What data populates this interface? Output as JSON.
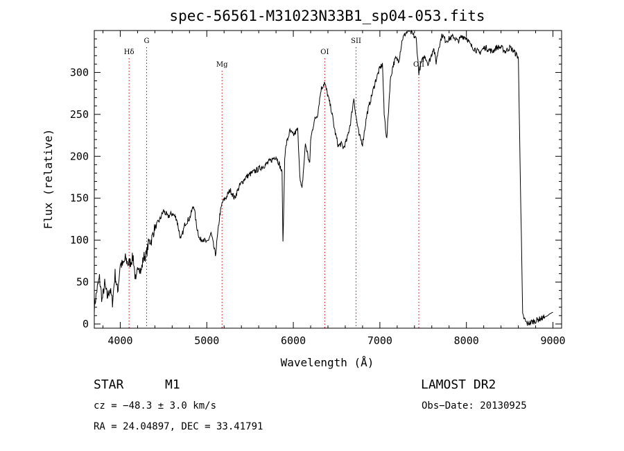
{
  "colors": {
    "spectrum": "#000000",
    "line_markers": "#cc0000",
    "axes": "#000000"
  },
  "chart_data": {
    "type": "line",
    "title": "spec-56561-M31023N33B1_sp04-053.fits",
    "xlabel": "Wavelength (Å)",
    "ylabel": "Flux (relative)",
    "xlim": [
      3700,
      9100
    ],
    "ylim": [
      -5,
      350
    ],
    "xticks": [
      4000,
      5000,
      6000,
      7000,
      8000,
      9000
    ],
    "yticks": [
      0,
      50,
      100,
      150,
      200,
      250,
      300
    ],
    "grid": false,
    "series": [
      {
        "x": [
          3700,
          3730,
          3760,
          3790,
          3820,
          3850,
          3880,
          3910,
          3940,
          3970,
          4000,
          4030,
          4060,
          4090,
          4120,
          4150,
          4180,
          4210,
          4240,
          4270,
          4300,
          4330,
          4360,
          4390,
          4420,
          4460,
          4500,
          4550,
          4600,
          4650,
          4700,
          4750,
          4800,
          4850,
          4880,
          4920,
          4960,
          5000,
          5050,
          5100,
          5150,
          5180,
          5200,
          5230,
          5270,
          5320,
          5380,
          5450,
          5520,
          5600,
          5680,
          5740,
          5800,
          5840,
          5870,
          5880,
          5890,
          5900,
          5920,
          5960,
          6000,
          6050,
          6080,
          6100,
          6140,
          6170,
          6190,
          6200,
          6240,
          6280,
          6320,
          6360,
          6400,
          6440,
          6480,
          6520,
          6550,
          6580,
          6620,
          6660,
          6700,
          6720,
          6760,
          6800,
          6850,
          6900,
          6950,
          7000,
          7030,
          7050,
          7080,
          7120,
          7150,
          7180,
          7220,
          7260,
          7300,
          7340,
          7380,
          7420,
          7450,
          7480,
          7520,
          7560,
          7600,
          7620,
          7650,
          7680,
          7720,
          7760,
          7800,
          7850,
          7900,
          7950,
          8000,
          8050,
          8100,
          8150,
          8180,
          8220,
          8260,
          8300,
          8350,
          8400,
          8450,
          8500,
          8550,
          8600,
          8650,
          8700,
          8750,
          8800,
          8850,
          8900,
          8920,
          8940,
          8950,
          8960,
          8980,
          9000
        ],
        "y": [
          20,
          40,
          55,
          28,
          48,
          32,
          42,
          26,
          60,
          38,
          72,
          70,
          78,
          72,
          74,
          80,
          48,
          72,
          62,
          80,
          82,
          98,
          100,
          112,
          118,
          125,
          135,
          128,
          132,
          126,
          100,
          120,
          126,
          142,
          118,
          100,
          102,
          96,
          108,
          82,
          130,
          145,
          148,
          152,
          160,
          150,
          165,
          175,
          180,
          185,
          190,
          195,
          200,
          190,
          180,
          95,
          140,
          200,
          215,
          230,
          225,
          232,
          170,
          160,
          215,
          200,
          190,
          220,
          242,
          250,
          280,
          288,
          272,
          255,
          230,
          212,
          215,
          210,
          220,
          240,
          270,
          250,
          225,
          215,
          250,
          270,
          290,
          305,
          310,
          250,
          220,
          290,
          308,
          316,
          315,
          340,
          347,
          350,
          345,
          340,
          300,
          312,
          320,
          310,
          322,
          330,
          312,
          330,
          345,
          338,
          340,
          343,
          337,
          343,
          342,
          332,
          328,
          323,
          327,
          330,
          327,
          325,
          330,
          330,
          325,
          330,
          325,
          318,
          10,
          0,
          2,
          4,
          6,
          8,
          9,
          10,
          11,
          12,
          13,
          14
        ],
        "y_note": "x and y arrays are sampled along the wavelength axis; see script for rendering"
      }
    ],
    "line_markers": [
      {
        "label": "Hδ",
        "wavelength": 4102
      },
      {
        "label": "G",
        "wavelength": 4305
      },
      {
        "label": "Mg",
        "wavelength": 5176
      },
      {
        "label": "OI",
        "wavelength": 6363
      },
      {
        "label": "SII",
        "wavelength": 6725
      },
      {
        "label": "OII",
        "wavelength": 7450
      }
    ]
  },
  "info": {
    "object_type": "STAR",
    "subclass": "M1",
    "survey": "LAMOST DR2",
    "cz": "cz = −48.3 ± 3.0 km/s",
    "obs_date": "Obs−Date: 20130925",
    "radec": "RA =  24.04897, DEC =  33.41791"
  }
}
